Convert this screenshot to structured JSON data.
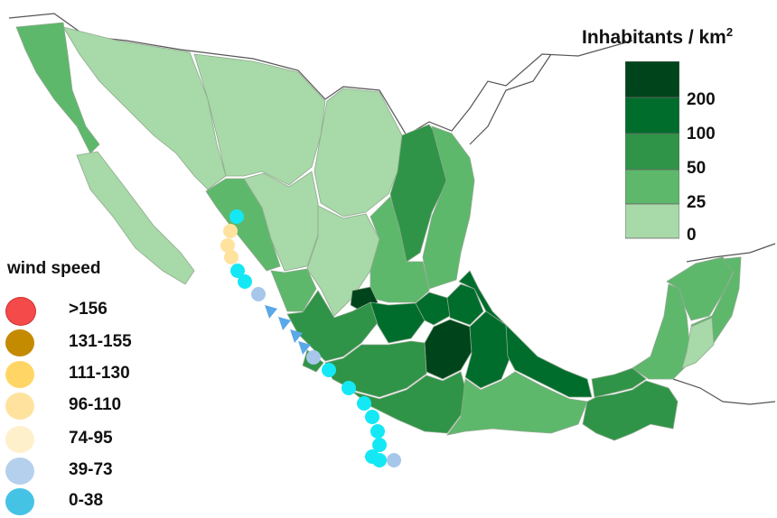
{
  "population_legend": {
    "title": "Inhabitants / km",
    "title_sup": "2",
    "bins": [
      {
        "label": "200",
        "color": "#00441b"
      },
      {
        "label": "100",
        "color": "#006d2c"
      },
      {
        "label": "50",
        "color": "#2f9447"
      },
      {
        "label": "25",
        "color": "#5db86b"
      },
      {
        "label": "0",
        "color": "#a8d9a8"
      }
    ]
  },
  "wind_legend": {
    "title": "wind speed",
    "classes": [
      {
        "label": ">156",
        "color": "#f44a4a"
      },
      {
        "label": "131-155",
        "color": "#c48a00"
      },
      {
        "label": "111-130",
        "color": "#ffd666"
      },
      {
        "label": "96-110",
        "color": "#ffe29e"
      },
      {
        "label": "74-95",
        "color": "#fff0cc"
      },
      {
        "label": "39-73",
        "color": "#b5d0ec"
      },
      {
        "label": "0-38",
        "color": "#45c3e5"
      }
    ]
  },
  "track_colors": {
    "lt38": "#14e8f5",
    "mid": "#a7c7ea",
    "ts": "#ffe29e",
    "arrow": "#5aa8e8"
  },
  "state_colors": {
    "c0": "#a8d9a8",
    "c1": "#5db86b",
    "c2": "#2f9447",
    "c3": "#006d2c",
    "c4": "#00441b"
  }
}
